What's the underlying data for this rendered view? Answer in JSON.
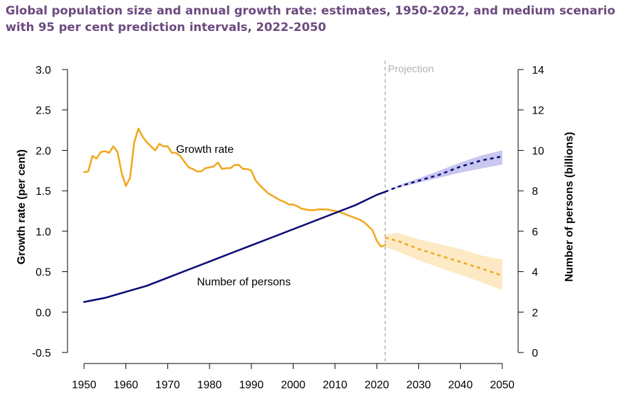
{
  "title": "Global population size and annual growth rate: estimates, 1950-2022, and medium scenario with 95 per cent prediction intervals, 2022-2050",
  "colors": {
    "title": "#6b4a7e",
    "growth": "#f0a81e",
    "growth_band": "#fde8c0",
    "population": "#0c0c78",
    "population_band": "#c4c4ee",
    "projection_line": "#b3b3b3"
  },
  "chart_data": {
    "type": "line",
    "title": "Global population size and annual growth rate: estimates, 1950-2022, and medium scenario with 95 per cent prediction intervals, 2022-2050",
    "xlabel": "",
    "ylabel_left": "Growth rate (per cent)",
    "ylabel_right": "Number of persons (billions)",
    "xlim": [
      1950,
      2050
    ],
    "ylim_left": [
      -0.5,
      3.0
    ],
    "ylim_right": [
      0,
      14
    ],
    "x_ticks": [
      1950,
      1960,
      1970,
      1980,
      1990,
      2000,
      2010,
      2020,
      2030,
      2040,
      2050
    ],
    "y_left_ticks": [
      "3.0",
      "2.5",
      "2.0",
      "1.5",
      "1.0",
      "0.5",
      "0.0",
      "-0.5"
    ],
    "y_right_ticks": [
      "14",
      "12",
      "10",
      "8",
      "6",
      "4",
      "2",
      "0"
    ],
    "projection": {
      "label": "Projection",
      "x": 2022
    },
    "annotations": {
      "growth": "Growth rate",
      "population": "Number of persons"
    },
    "series": [
      {
        "name": "Growth rate",
        "axis": "left",
        "style": "solid",
        "x": [
          1950,
          1951,
          1952,
          1953,
          1954,
          1955,
          1956,
          1957,
          1958,
          1959,
          1960,
          1961,
          1962,
          1963,
          1964,
          1965,
          1966,
          1967,
          1968,
          1969,
          1970,
          1971,
          1972,
          1973,
          1974,
          1975,
          1976,
          1977,
          1978,
          1979,
          1980,
          1981,
          1982,
          1983,
          1984,
          1985,
          1986,
          1987,
          1988,
          1989,
          1990,
          1991,
          1992,
          1993,
          1994,
          1995,
          1996,
          1997,
          1998,
          1999,
          2000,
          2001,
          2002,
          2003,
          2004,
          2005,
          2006,
          2007,
          2008,
          2009,
          2010,
          2011,
          2012,
          2013,
          2014,
          2015,
          2016,
          2017,
          2018,
          2019,
          2020,
          2021,
          2022
        ],
        "values": [
          1.73,
          1.74,
          1.93,
          1.9,
          1.98,
          1.99,
          1.97,
          2.05,
          1.98,
          1.72,
          1.56,
          1.66,
          2.1,
          2.27,
          2.17,
          2.1,
          2.05,
          2.0,
          2.08,
          2.05,
          2.05,
          1.97,
          1.97,
          1.93,
          1.86,
          1.79,
          1.77,
          1.74,
          1.74,
          1.78,
          1.79,
          1.8,
          1.85,
          1.77,
          1.78,
          1.78,
          1.82,
          1.82,
          1.77,
          1.77,
          1.75,
          1.63,
          1.57,
          1.52,
          1.47,
          1.44,
          1.41,
          1.38,
          1.36,
          1.33,
          1.33,
          1.31,
          1.28,
          1.27,
          1.26,
          1.26,
          1.27,
          1.27,
          1.27,
          1.26,
          1.25,
          1.24,
          1.22,
          1.2,
          1.18,
          1.16,
          1.14,
          1.11,
          1.06,
          1.01,
          0.88,
          0.81,
          0.83
        ]
      },
      {
        "name": "Growth rate (projection)",
        "axis": "left",
        "style": "dashed",
        "x": [
          2022,
          2025,
          2030,
          2035,
          2040,
          2045,
          2050
        ],
        "values": [
          0.92,
          0.88,
          0.78,
          0.7,
          0.62,
          0.54,
          0.45
        ],
        "lower": [
          0.8,
          0.75,
          0.64,
          0.55,
          0.46,
          0.37,
          0.27
        ],
        "upper": [
          0.96,
          0.98,
          0.9,
          0.84,
          0.78,
          0.7,
          0.65
        ]
      },
      {
        "name": "Number of persons",
        "axis": "right",
        "style": "solid",
        "x": [
          1950,
          1955,
          1960,
          1965,
          1970,
          1975,
          1980,
          1985,
          1990,
          1995,
          2000,
          2005,
          2010,
          2015,
          2020,
          2022
        ],
        "values": [
          2.5,
          2.7,
          3.0,
          3.3,
          3.7,
          4.1,
          4.5,
          4.9,
          5.3,
          5.7,
          6.1,
          6.5,
          6.9,
          7.3,
          7.8,
          7.95
        ]
      },
      {
        "name": "Number of persons (projection)",
        "axis": "right",
        "style": "dashed",
        "x": [
          2022,
          2025,
          2030,
          2035,
          2040,
          2045,
          2050
        ],
        "values": [
          7.95,
          8.2,
          8.5,
          8.8,
          9.2,
          9.5,
          9.7
        ],
        "lower": [
          7.95,
          8.15,
          8.4,
          8.65,
          8.9,
          9.1,
          9.3
        ],
        "upper": [
          7.95,
          8.25,
          8.62,
          9.0,
          9.4,
          9.75,
          10.0
        ]
      }
    ]
  }
}
